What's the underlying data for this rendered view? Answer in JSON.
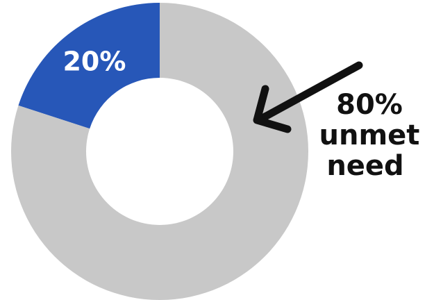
{
  "chart_data": {
    "type": "pie",
    "style": "donut",
    "title": "",
    "slices": [
      {
        "label": "20%",
        "value": 20,
        "color": "#2757B8",
        "show_label": true
      },
      {
        "label": "80%",
        "value": 80,
        "color": "#C8C8C8",
        "show_label": false
      }
    ],
    "annotation": {
      "lines": [
        "80%",
        "unmet",
        "need"
      ],
      "arrow": true,
      "color": "#111111",
      "points_to": "80%"
    },
    "legend": "none"
  }
}
